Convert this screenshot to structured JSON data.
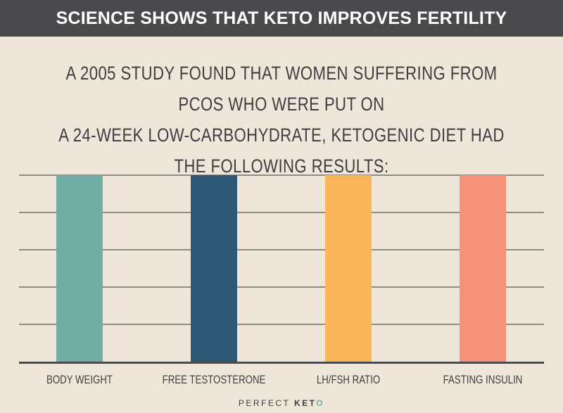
{
  "header": {
    "title": "SCIENCE SHOWS THAT KETO IMPROVES FERTILITY"
  },
  "subtitle": {
    "line1": "A 2005 study found that women suffering from PCOS who were put on",
    "line2": "a 24-week low-carbohydrate, ketogenic diet had the following results:"
  },
  "chart_data": {
    "type": "bar",
    "categories": [
      "BODY WEIGHT",
      "FREE TESTOSTERONE",
      "LH/FSH RATIO",
      "FASTING INSULIN"
    ],
    "values": [
      5,
      5,
      5,
      5
    ],
    "ylim": [
      0,
      5
    ],
    "grid": true,
    "colors": [
      "#72ada6",
      "#2f5877",
      "#fab45a",
      "#f6917a"
    ],
    "title": "",
    "xlabel": "",
    "ylabel": ""
  },
  "logo": {
    "part1": "PERFECT",
    "part2": "KET",
    "part3": "O"
  }
}
